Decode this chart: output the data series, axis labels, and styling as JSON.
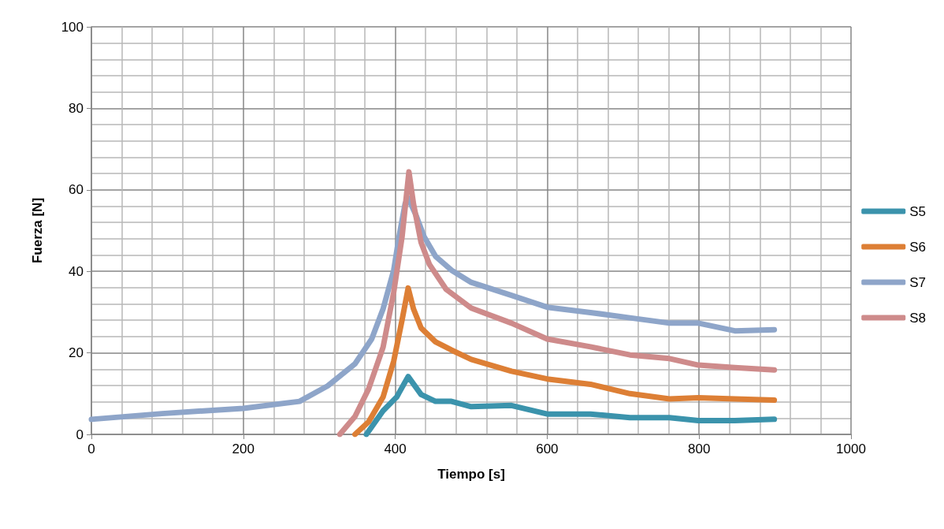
{
  "chart_data": {
    "type": "line",
    "xlabel": "Tiempo [s]",
    "ylabel": "Fuerza [N]",
    "xlim": [
      0,
      1000
    ],
    "xticks": [
      0,
      200,
      400,
      600,
      800,
      1000
    ],
    "ylim": [
      0,
      100
    ],
    "yticks": [
      0,
      20,
      40,
      60,
      80,
      100
    ],
    "grid": true,
    "legend": "right",
    "marker": "none",
    "line_style": "solid",
    "series": [
      {
        "name": "S5",
        "color": "#3b93ac",
        "x": [
          362,
          384,
          402,
          417,
          434,
          453,
          474,
          500,
          553,
          600,
          657,
          709,
          761,
          799,
          847,
          899
        ],
        "values": [
          0,
          5.8,
          9.2,
          14.2,
          9.8,
          8.1,
          8.1,
          6.8,
          7.1,
          5.0,
          5.0,
          4.1,
          4.1,
          3.4,
          3.4,
          3.7
        ]
      },
      {
        "name": "S6",
        "color": "#dd7f35",
        "x": [
          347,
          365,
          384,
          398,
          409,
          417,
          424,
          434,
          453,
          474,
          500,
          553,
          600,
          657,
          709,
          761,
          799,
          847,
          899
        ],
        "values": [
          0,
          3.1,
          9.2,
          18,
          28.1,
          35.9,
          30.8,
          26.1,
          22.7,
          20.7,
          18.4,
          15.5,
          13.6,
          12.3,
          10.0,
          8.7,
          9.0,
          8.7,
          8.4
        ]
      },
      {
        "name": "S7",
        "color": "#8ea5c9",
        "x": [
          0,
          93,
          200,
          274,
          311,
          347,
          369,
          384,
          398,
          405,
          413,
          417,
          427,
          438,
          453,
          474,
          500,
          553,
          600,
          657,
          709,
          761,
          799,
          847,
          899
        ],
        "values": [
          3.7,
          5.1,
          6.4,
          8.1,
          11.9,
          17.3,
          23.4,
          30.8,
          40.3,
          48.5,
          56.6,
          58,
          53.9,
          48.5,
          43.7,
          40.3,
          37.3,
          34.1,
          31.2,
          29.9,
          28.6,
          27.3,
          27.3,
          25.4,
          25.7
        ]
      },
      {
        "name": "S8",
        "color": "#ce8b8b",
        "x": [
          327,
          347,
          365,
          384,
          398,
          409,
          418,
          424,
          434,
          445,
          467,
          500,
          553,
          600,
          657,
          709,
          761,
          799,
          847,
          899
        ],
        "values": [
          0,
          4.4,
          11.2,
          21.4,
          34.9,
          48.5,
          64.4,
          56.6,
          47.1,
          41.7,
          35.6,
          31,
          27.3,
          23.4,
          21.5,
          19.5,
          18.6,
          17.0,
          16.4,
          15.8
        ]
      }
    ]
  }
}
